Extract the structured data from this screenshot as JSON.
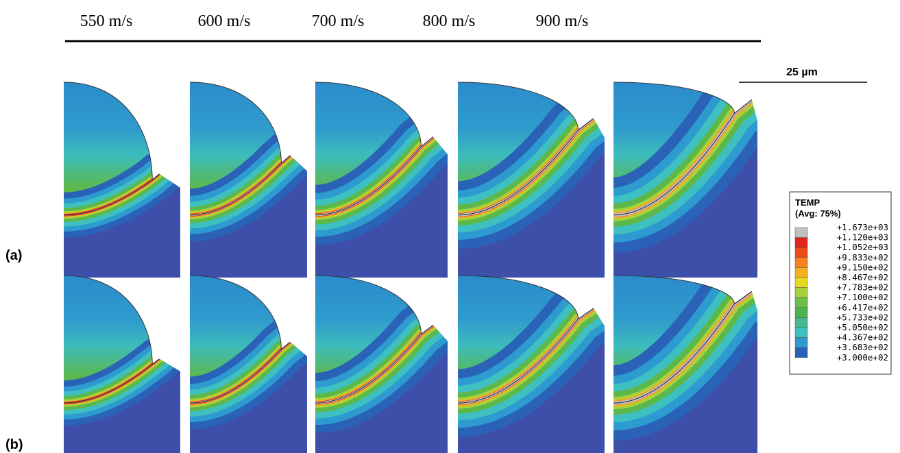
{
  "columns": [
    "550 m/s",
    "600 m/s",
    "700 m/s",
    "800 m/s",
    "900 m/s"
  ],
  "rows": [
    "(a)",
    "(b)"
  ],
  "scale_bar": "25 µm",
  "legend": {
    "title": "TEMP",
    "subtitle": "(Avg: 75%)",
    "labels": [
      "+1.673e+03",
      "+1.120e+03",
      "+1.052e+03",
      "+9.833e+02",
      "+9.150e+02",
      "+8.467e+02",
      "+7.783e+02",
      "+7.100e+02",
      "+6.417e+02",
      "+5.733e+02",
      "+5.050e+02",
      "+4.367e+02",
      "+3.683e+02",
      "+3.000e+02"
    ]
  }
}
